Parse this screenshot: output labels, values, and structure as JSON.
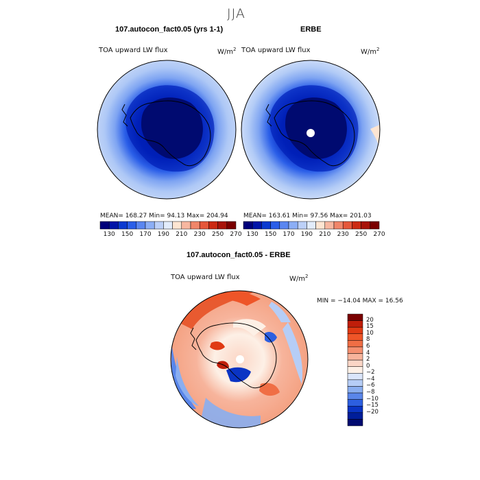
{
  "figure": {
    "season": "JJA",
    "panel_left": {
      "title": "107.autocon_fact0.05 (yrs 1-1)",
      "variable": "TOA upward LW flux",
      "units": "W/m",
      "units_exp": "2",
      "stats": "MEAN= 168.27  Min=   94.13  Max= 204.94"
    },
    "panel_right": {
      "title": "ERBE",
      "variable": "TOA upward LW flux",
      "units": "W/m",
      "units_exp": "2",
      "stats": "MEAN= 163.61  Min=   97.56  Max= 201.03"
    },
    "panel_diff": {
      "title": "107.autocon_fact0.05 - ERBE",
      "variable": "TOA upward LW flux",
      "units": "W/m",
      "units_exp": "2",
      "stats": "MIN = −14.04  MAX =  16.56"
    },
    "flux_colorbar": {
      "tick_labels": [
        "130",
        "150",
        "170",
        "190",
        "210",
        "230",
        "250",
        "270"
      ],
      "colors": [
        "#00007a",
        "#0014a8",
        "#0a3ad0",
        "#2a5ee8",
        "#5a86f0",
        "#8caef5",
        "#bcd0f8",
        "#e2ecfb",
        "#fde5d2",
        "#f7b7a0",
        "#f0866a",
        "#e5573a",
        "#cc2a12",
        "#a8140a",
        "#7a0000"
      ]
    },
    "diff_colorbar": {
      "tick_labels": [
        "20",
        "15",
        "10",
        "8",
        "6",
        "4",
        "2",
        "0",
        "−2",
        "−4",
        "−6",
        "−8",
        "−10",
        "−15",
        "−20"
      ],
      "colors": [
        "#7a0000",
        "#c01e0a",
        "#e03a14",
        "#ee5528",
        "#f06e45",
        "#f49070",
        "#f7b49c",
        "#fbd6c6",
        "#fdf0e6",
        "#dbe6fb",
        "#b6cdf6",
        "#8aaef0",
        "#5a86ea",
        "#2d5fe0",
        "#0a34c4",
        "#001e9a",
        "#000a70"
      ]
    }
  }
}
